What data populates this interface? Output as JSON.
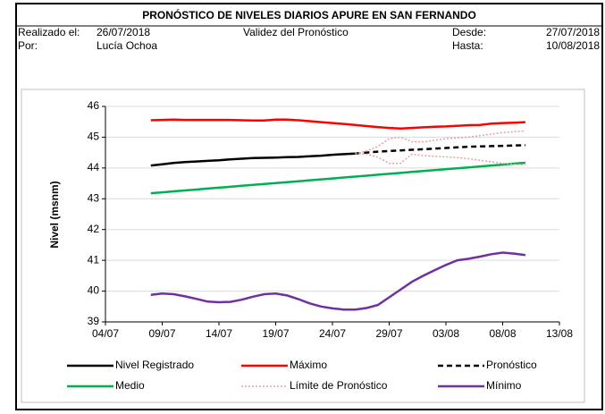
{
  "header": {
    "title": "PRONÓSTICO DE NIVELES DIARIOS APURE EN SAN FERNANDO",
    "made_label": "Realizado el:",
    "made_date": "26/07/2018",
    "validity": "Validez del Pronóstico",
    "from_label": "Desde:",
    "from_date": "27/07/2018",
    "by_label": "Por:",
    "by_name": "Lucía Ochoa",
    "to_label": "Hasta:",
    "to_date": "10/08/2018"
  },
  "chart_data": {
    "type": "line",
    "y_label": "Nivel (msnm)",
    "x": [
      "08/07",
      "09/07",
      "10/07",
      "11/07",
      "12/07",
      "13/07",
      "14/07",
      "15/07",
      "16/07",
      "17/07",
      "18/07",
      "19/07",
      "20/07",
      "21/07",
      "22/07",
      "23/07",
      "24/07",
      "25/07",
      "26/07",
      "27/07",
      "28/07",
      "29/07",
      "30/07",
      "31/07",
      "01/08",
      "02/08",
      "03/08",
      "04/08",
      "05/08",
      "06/08",
      "07/08",
      "08/08",
      "09/08",
      "10/08"
    ],
    "xlim": [
      "04/07",
      "13/08"
    ],
    "xticks": [
      "04/07",
      "09/07",
      "14/07",
      "19/07",
      "24/07",
      "29/07",
      "03/08",
      "08/08",
      "13/08"
    ],
    "ylim": [
      39,
      46
    ],
    "yticks": [
      39,
      40,
      41,
      42,
      43,
      44,
      45,
      46
    ],
    "grid": true,
    "series": [
      {
        "name": "Nivel Registrado",
        "color": "#000000",
        "style": "solid",
        "values": [
          44.08,
          44.12,
          44.16,
          44.19,
          44.21,
          44.23,
          44.25,
          44.28,
          44.3,
          44.32,
          44.33,
          44.34,
          44.35,
          44.36,
          44.38,
          44.4,
          44.43,
          44.45,
          44.47,
          null,
          null,
          null,
          null,
          null,
          null,
          null,
          null,
          null,
          null,
          null,
          null,
          null,
          null,
          null
        ]
      },
      {
        "name": "Máximo",
        "color": "#ff0000",
        "style": "solid",
        "values": [
          45.55,
          45.56,
          45.57,
          45.56,
          45.56,
          45.56,
          45.56,
          45.56,
          45.55,
          45.54,
          45.54,
          45.57,
          45.57,
          45.55,
          45.52,
          45.49,
          45.46,
          45.43,
          45.4,
          45.36,
          45.33,
          45.3,
          45.28,
          45.3,
          45.32,
          45.34,
          45.35,
          45.37,
          45.39,
          45.4,
          45.44,
          45.46,
          45.47,
          45.49
        ]
      },
      {
        "name": "Pronóstico",
        "color": "#000000",
        "style": "dashed",
        "values": [
          null,
          null,
          null,
          null,
          null,
          null,
          null,
          null,
          null,
          null,
          null,
          null,
          null,
          null,
          null,
          null,
          null,
          null,
          44.47,
          44.5,
          44.53,
          44.55,
          44.57,
          44.59,
          44.61,
          44.63,
          44.65,
          44.67,
          44.69,
          44.7,
          44.71,
          44.72,
          44.73,
          44.74
        ]
      },
      {
        "name": "Medio",
        "color": "#00b050",
        "style": "solid",
        "values": [
          43.18,
          43.21,
          43.24,
          43.27,
          43.3,
          43.33,
          43.36,
          43.39,
          43.42,
          43.45,
          43.48,
          43.51,
          43.54,
          43.57,
          43.6,
          43.63,
          43.66,
          43.69,
          43.72,
          43.75,
          43.78,
          43.81,
          43.84,
          43.87,
          43.9,
          43.93,
          43.96,
          43.99,
          44.02,
          44.05,
          44.08,
          44.11,
          44.14,
          44.17
        ]
      },
      {
        "name": "Límite de Pronóstico",
        "color": "#e6a0a0",
        "style": "dotted",
        "values": [
          null,
          null,
          null,
          null,
          null,
          null,
          null,
          null,
          null,
          null,
          null,
          null,
          null,
          null,
          null,
          null,
          null,
          null,
          44.47,
          44.55,
          44.7,
          44.95,
          45.0,
          44.85,
          44.85,
          44.9,
          44.95,
          44.98,
          45.0,
          45.05,
          45.1,
          45.15,
          45.18,
          45.2
        ],
        "lower_values": [
          null,
          null,
          null,
          null,
          null,
          null,
          null,
          null,
          null,
          null,
          null,
          null,
          null,
          null,
          null,
          null,
          null,
          null,
          44.47,
          44.45,
          44.35,
          44.15,
          44.15,
          44.45,
          44.4,
          44.38,
          44.36,
          44.34,
          44.3,
          44.25,
          44.2,
          44.15,
          44.12,
          44.1
        ]
      },
      {
        "name": "Mínimo",
        "color": "#7030a0",
        "style": "solid",
        "values": [
          39.88,
          39.92,
          39.9,
          39.83,
          39.75,
          39.66,
          39.64,
          39.65,
          39.72,
          39.82,
          39.9,
          39.92,
          39.86,
          39.74,
          39.6,
          39.5,
          39.44,
          39.4,
          39.4,
          39.45,
          39.55,
          39.8,
          40.05,
          40.3,
          40.5,
          40.68,
          40.85,
          41.0,
          41.05,
          41.12,
          41.2,
          41.25,
          41.22,
          41.17
        ]
      }
    ]
  }
}
